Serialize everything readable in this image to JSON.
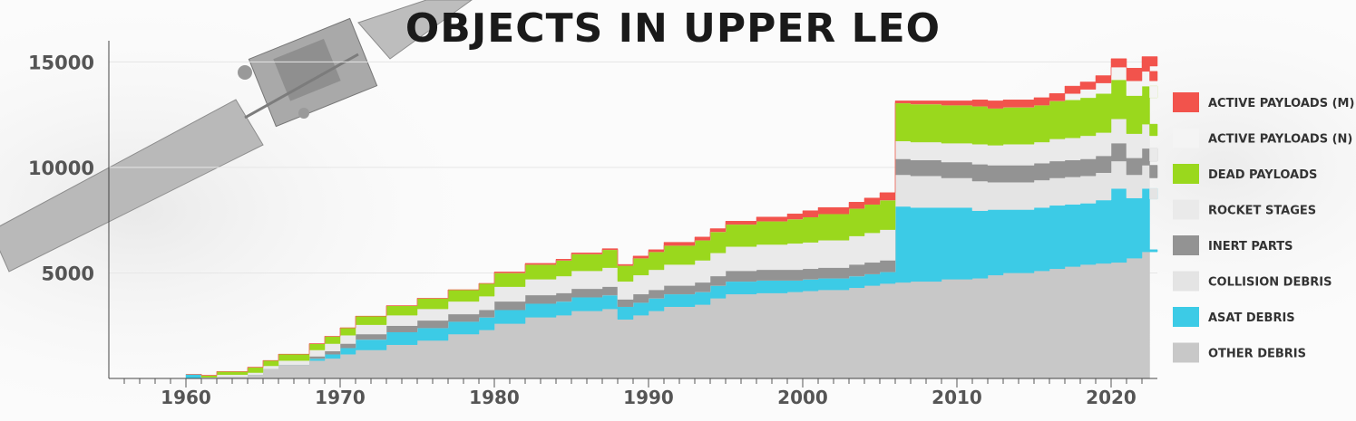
{
  "chart_data": {
    "type": "area",
    "title": "OBJECTS IN UPPER LEO",
    "xlabel": "",
    "ylabel": "",
    "xlim": [
      1955,
      2023
    ],
    "ylim": [
      0,
      16000
    ],
    "yticks": [
      5000,
      10000,
      15000
    ],
    "xticks": [
      1960,
      1970,
      1980,
      1990,
      2000,
      2010,
      2020
    ],
    "stacked": true,
    "legend_position": "right",
    "x": [
      1960,
      1961,
      1962,
      1964,
      1965,
      1966,
      1968,
      1969,
      1970,
      1971,
      1973,
      1975,
      1977,
      1979,
      1980,
      1982,
      1984,
      1985,
      1987,
      1988,
      1989,
      1990,
      1991,
      1993,
      1994,
      1995,
      1997,
      1999,
      2000,
      2001,
      2003,
      2004,
      2005,
      2006,
      2007,
      2009,
      2011,
      2012,
      2013,
      2015,
      2016,
      2017,
      2018,
      2019,
      2020,
      2021,
      2022,
      2023
    ],
    "series": [
      {
        "name": "OTHER DEBRIS",
        "color": "#c8c8c8",
        "values": [
          0,
          0,
          80,
          180,
          450,
          650,
          850,
          950,
          1150,
          1350,
          1600,
          1800,
          2100,
          2300,
          2600,
          2900,
          3000,
          3200,
          3300,
          2800,
          3000,
          3200,
          3400,
          3500,
          3800,
          4000,
          4050,
          4100,
          4150,
          4200,
          4300,
          4400,
          4500,
          4550,
          4600,
          4700,
          4750,
          4900,
          5000,
          5100,
          5200,
          5300,
          5400,
          5450,
          5500,
          5700,
          6000,
          6100
        ]
      },
      {
        "name": "ASAT DEBRIS",
        "color": "#3ccbe6",
        "values": [
          200,
          0,
          0,
          0,
          0,
          0,
          100,
          200,
          300,
          500,
          600,
          600,
          600,
          600,
          650,
          650,
          650,
          650,
          650,
          600,
          600,
          600,
          600,
          600,
          600,
          600,
          600,
          550,
          550,
          550,
          550,
          550,
          550,
          3600,
          3500,
          3400,
          3200,
          3100,
          3000,
          3000,
          3000,
          2950,
          2900,
          3000,
          3500,
          2850,
          3000,
          2400
        ]
      },
      {
        "name": "COLLISION DEBRIS",
        "color": "#e4e4e4",
        "values": [
          0,
          0,
          0,
          0,
          0,
          0,
          0,
          0,
          0,
          0,
          0,
          0,
          0,
          0,
          0,
          0,
          0,
          0,
          0,
          0,
          0,
          0,
          0,
          0,
          0,
          0,
          0,
          0,
          0,
          0,
          0,
          0,
          0,
          1500,
          1500,
          1400,
          1400,
          1300,
          1300,
          1300,
          1300,
          1300,
          1300,
          1300,
          1300,
          1100,
          1100,
          1000
        ]
      },
      {
        "name": "INERT PARTS",
        "color": "#939393",
        "values": [
          0,
          0,
          0,
          0,
          0,
          0,
          100,
          150,
          200,
          250,
          300,
          350,
          350,
          350,
          400,
          400,
          400,
          400,
          400,
          350,
          400,
          400,
          400,
          450,
          450,
          500,
          500,
          500,
          500,
          500,
          550,
          550,
          550,
          750,
          750,
          750,
          800,
          800,
          800,
          800,
          800,
          800,
          800,
          800,
          850,
          800,
          800,
          800
        ]
      },
      {
        "name": "ROCKET STAGES",
        "color": "#eaeaea",
        "values": [
          0,
          50,
          100,
          100,
          150,
          200,
          300,
          350,
          400,
          450,
          500,
          550,
          600,
          650,
          700,
          750,
          800,
          850,
          900,
          850,
          900,
          950,
          1000,
          1050,
          1100,
          1150,
          1200,
          1250,
          1250,
          1300,
          1350,
          1400,
          1450,
          850,
          850,
          900,
          950,
          950,
          1000,
          1000,
          1050,
          1050,
          1100,
          1100,
          1150,
          1150,
          1150,
          1200
        ]
      },
      {
        "name": "DEAD PAYLOADS",
        "color": "#9ad81d",
        "values": [
          0,
          100,
          150,
          250,
          250,
          300,
          300,
          350,
          350,
          400,
          450,
          500,
          550,
          600,
          650,
          700,
          750,
          800,
          850,
          750,
          800,
          850,
          900,
          950,
          1000,
          1050,
          1100,
          1150,
          1200,
          1250,
          1300,
          1350,
          1400,
          1800,
          1800,
          1800,
          1800,
          1750,
          1750,
          1750,
          1800,
          1800,
          1800,
          1850,
          1850,
          1800,
          1800,
          1800
        ]
      },
      {
        "name": "ACTIVE PAYLOADS (N)",
        "color": "#f4f4f4",
        "values": [
          0,
          0,
          0,
          0,
          0,
          0,
          0,
          0,
          0,
          0,
          0,
          0,
          0,
          0,
          0,
          0,
          0,
          0,
          0,
          0,
          0,
          0,
          0,
          0,
          0,
          0,
          0,
          0,
          0,
          0,
          0,
          0,
          0,
          0,
          0,
          0,
          0,
          0,
          0,
          0,
          0,
          300,
          400,
          500,
          600,
          700,
          700,
          800
        ]
      },
      {
        "name": "ACTIVE PAYLOADS (M)",
        "color": "#f2534c",
        "values": [
          0,
          0,
          0,
          0,
          0,
          0,
          0,
          0,
          0,
          0,
          0,
          0,
          0,
          0,
          50,
          50,
          50,
          50,
          50,
          50,
          100,
          100,
          150,
          150,
          150,
          150,
          200,
          250,
          300,
          300,
          300,
          300,
          350,
          100,
          150,
          200,
          300,
          350,
          350,
          350,
          350,
          350,
          350,
          350,
          400,
          600,
          700,
          700
        ]
      }
    ]
  }
}
